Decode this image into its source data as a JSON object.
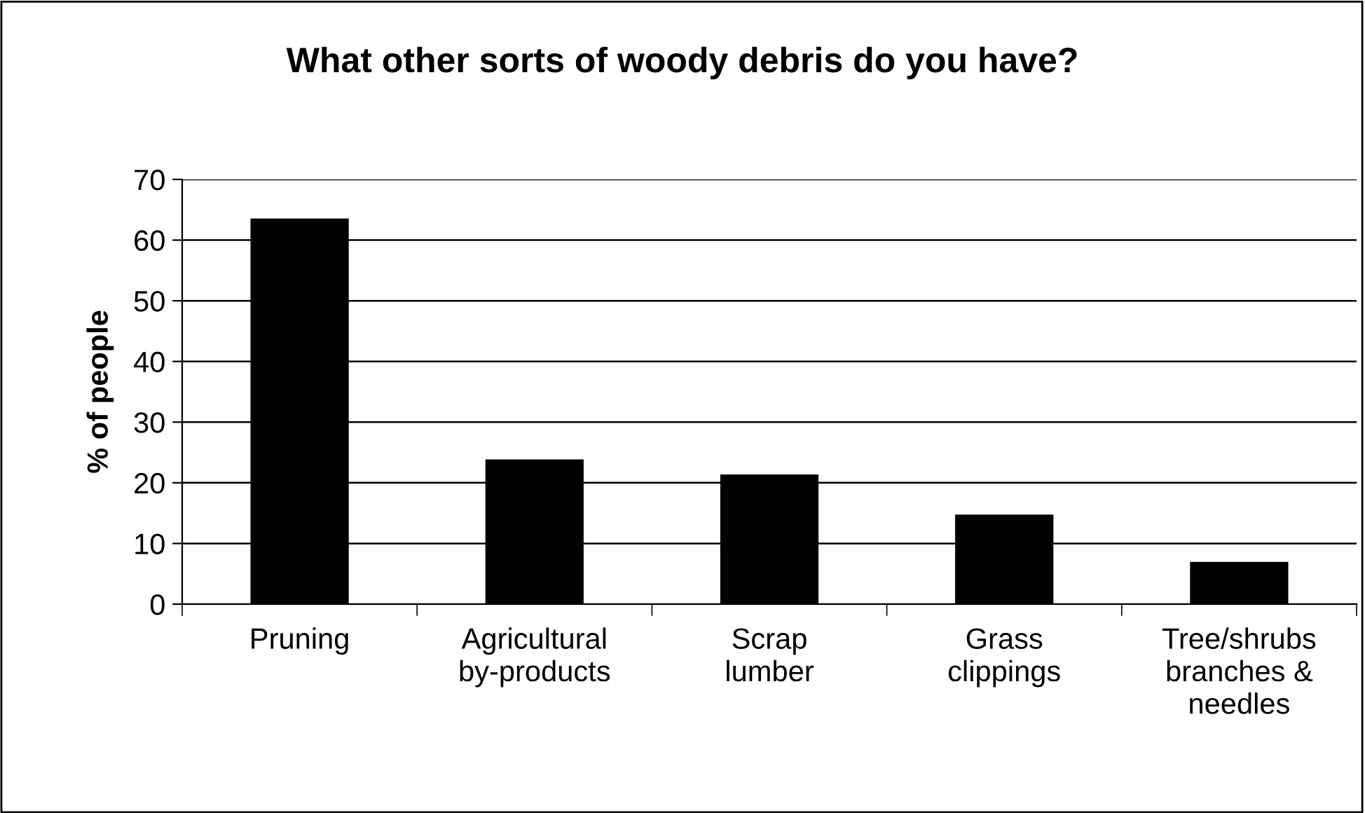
{
  "chart_data": {
    "type": "bar",
    "title": "What other sorts of woody debris do you have?",
    "ylabel": "% of people",
    "categories": [
      "Pruning",
      "Agricultural\nby-products",
      "Scrap\nlumber",
      "Grass\nclippings",
      "Tree/shrubs\nbranches &\nneedles"
    ],
    "values": [
      63.4,
      23.7,
      21.2,
      14.6,
      6.8
    ],
    "color": "#000000",
    "ylim": [
      0,
      70
    ],
    "yticks": [
      0,
      10,
      20,
      30,
      40,
      50,
      60,
      70
    ],
    "grid": "y",
    "legend": false
  }
}
